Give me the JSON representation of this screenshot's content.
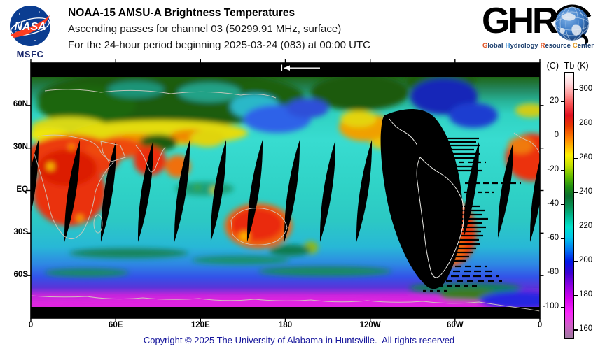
{
  "header": {
    "nasa": {
      "caption": "MSFC",
      "logo": "nasa-meatball"
    },
    "title": "NOAA-15 AMSU-A Brightness Temperatures",
    "subtitle": "Ascending passes for channel 03 (50299.91 MHz, surface)",
    "period_line": "For the 24-hour period beginning 2025-03-24 (083) at 00:00 UTC",
    "ghrc": {
      "wordmark": "GHR",
      "globe_icon": "globe-as-letter-C",
      "tagline": [
        {
          "initial": "G",
          "rest": "lobal"
        },
        {
          "initial": "H",
          "rest": "ydrology"
        },
        {
          "initial": "R",
          "rest": "esource"
        },
        {
          "initial": "C",
          "rest": "enter"
        }
      ]
    }
  },
  "map": {
    "projection": "equirectangular world map, longitude 0-360E, latitude 90N-90S",
    "lat_ticks": [
      "60N",
      "30N",
      "EQ",
      "30S",
      "60S"
    ],
    "lon_ticks": [
      "0",
      "60E",
      "120E",
      "180",
      "120W",
      "60W",
      "0"
    ],
    "direction_arrow": "left",
    "no_data_color": "#000000",
    "coastline_color": "#d0cabe"
  },
  "colorbar": {
    "header_celsius": "(C)",
    "header_quantity": "Tb",
    "header_kelvin": "(K)",
    "kelvin_ticks": [
      300,
      280,
      260,
      240,
      220,
      200,
      180,
      160
    ],
    "celsius_ticks": [
      20,
      0,
      -20,
      -40,
      -60,
      -80,
      -100
    ],
    "kelvin_range": [
      155,
      310
    ],
    "stops": [
      {
        "p": 0,
        "c": "#ffffff"
      },
      {
        "p": 4,
        "c": "#ffd8dc"
      },
      {
        "p": 8,
        "c": "#ff9c9c"
      },
      {
        "p": 12,
        "c": "#f85050"
      },
      {
        "p": 16,
        "c": "#e01020"
      },
      {
        "p": 20,
        "c": "#e83800"
      },
      {
        "p": 24.5,
        "c": "#ff7e00"
      },
      {
        "p": 28.5,
        "c": "#ffc200"
      },
      {
        "p": 31,
        "c": "#fdf000"
      },
      {
        "p": 35,
        "c": "#c2e000"
      },
      {
        "p": 39.5,
        "c": "#5ab800"
      },
      {
        "p": 43,
        "c": "#1e8e12"
      },
      {
        "p": 46.5,
        "c": "#0a6e2e"
      },
      {
        "p": 50.5,
        "c": "#069256"
      },
      {
        "p": 54,
        "c": "#00b890"
      },
      {
        "p": 58,
        "c": "#00e2cc"
      },
      {
        "p": 62,
        "c": "#00c6ea"
      },
      {
        "p": 66.5,
        "c": "#0078f2"
      },
      {
        "p": 71,
        "c": "#0018e8"
      },
      {
        "p": 75.5,
        "c": "#3c00d2"
      },
      {
        "p": 80,
        "c": "#8c00e0"
      },
      {
        "p": 85,
        "c": "#d400ec"
      },
      {
        "p": 90.5,
        "c": "#fa28fa"
      },
      {
        "p": 95,
        "c": "#d05ec8"
      },
      {
        "p": 100,
        "c": "#9c7a9c"
      }
    ]
  },
  "footer": {
    "copyright": "Copyright © 2025 The University of Alabama in Huntsville.  All rights reserved"
  },
  "palette": {
    "hot_land": "#ec3a0e",
    "warm_land_yellow": "#e4dc10",
    "cold_land_dark_green": "#1d5c0c",
    "ocean_cyan": "#38dcd0",
    "polar_magenta": "#e020e0",
    "deep_ocean_blue": "#1626b8",
    "no_data_black": "#000000",
    "coastline_gray": "#d0cabe",
    "nasa_blue": "#0b3d91",
    "nasa_red": "#fc3d21",
    "copyright_blue": "#16169c"
  }
}
